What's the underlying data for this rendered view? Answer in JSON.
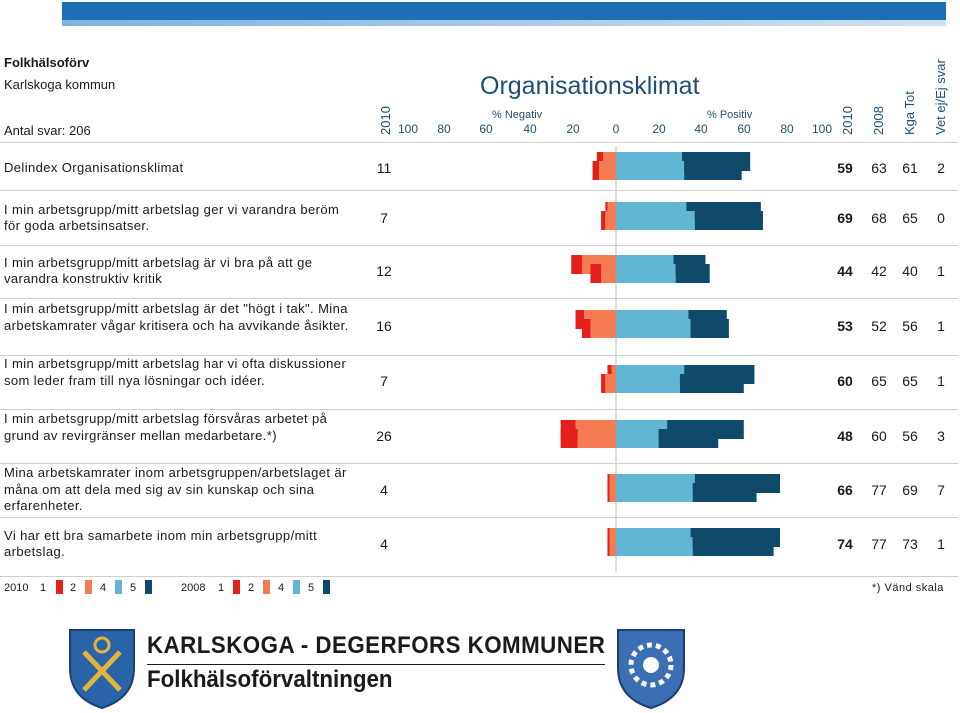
{
  "header": {
    "org": "Folkhälsoförv",
    "municipality": "Karlskoga kommun",
    "respondents": "Antal svar: 206",
    "title": "Organisationsklimat",
    "neg_label": "% Negativ",
    "pos_label": "% Positiv",
    "col_year_left": "2010",
    "col_year_a": "2010",
    "col_year_b": "2008",
    "col_kga": "Kga Tot",
    "col_vetej": "Vet ej/Ej svar"
  },
  "axis": {
    "ticks": [
      "100",
      "80",
      "60",
      "40",
      "20",
      "0",
      "20",
      "40",
      "60",
      "80",
      "100"
    ]
  },
  "chart_data": {
    "type": "bar",
    "title": "Organisationsklimat",
    "xlabel_left": "% Negativ",
    "xlabel_right": "% Positiv",
    "xlim": [
      -100,
      100
    ],
    "series_legend": {
      "2010": [
        "1",
        "2",
        "4",
        "5"
      ],
      "2008": [
        "1",
        "2",
        "4",
        "5"
      ]
    },
    "rows": [
      {
        "label": "Delindex  Organisationsklimat",
        "neg2010": 11,
        "pos2010": 59,
        "pos2008": 63,
        "kga": 61,
        "vetej": 2,
        "b2010": {
          "v1": -3,
          "v2": -8,
          "v4": 32,
          "v5": 27
        },
        "b2008": {
          "v1": -3,
          "v2": -6,
          "v4": 31,
          "v5": 32
        }
      },
      {
        "label": "I min arbetsgrupp/mitt arbetslag ger vi varandra beröm för goda arbetsinsatser.",
        "neg2010": 7,
        "pos2010": 69,
        "pos2008": 68,
        "kga": 65,
        "vetej": 0,
        "b2010": {
          "v1": -2,
          "v2": -5,
          "v4": 37,
          "v5": 32
        },
        "b2008": {
          "v1": -1,
          "v2": -4,
          "v4": 33,
          "v5": 35
        }
      },
      {
        "label": "I min arbetsgrupp/mitt arbetslag är vi bra på att ge varandra konstruktiv kritik",
        "neg2010": 12,
        "pos2010": 44,
        "pos2008": 42,
        "kga": 40,
        "vetej": 1,
        "b2010": {
          "v1": -5,
          "v2": -7,
          "v4": 28,
          "v5": 16
        },
        "b2008": {
          "v1": -5,
          "v2": -16,
          "v4": 27,
          "v5": 15
        }
      },
      {
        "label": "I min arbetsgrupp/mitt arbetslag är det \"högt i tak\". Mina arbetskamrater vågar kritisera och ha avvikande åsikter.",
        "neg2010": 16,
        "pos2010": 53,
        "pos2008": 52,
        "kga": 56,
        "vetej": 1,
        "b2010": {
          "v1": -4,
          "v2": -12,
          "v4": 35,
          "v5": 18
        },
        "b2008": {
          "v1": -4,
          "v2": -15,
          "v4": 34,
          "v5": 18
        }
      },
      {
        "label": "I min arbetsgrupp/mitt arbetslag har vi ofta diskussioner som leder fram till nya lösningar och idéer.",
        "neg2010": 7,
        "pos2010": 60,
        "pos2008": 65,
        "kga": 65,
        "vetej": 1,
        "b2010": {
          "v1": -2,
          "v2": -5,
          "v4": 30,
          "v5": 30
        },
        "b2008": {
          "v1": -2,
          "v2": -2,
          "v4": 32,
          "v5": 33
        }
      },
      {
        "label": "I min arbetsgrupp/mitt arbetslag försvåras arbetet på grund av revirgränser mellan medarbetare.*)",
        "neg2010": 26,
        "pos2010": 48,
        "pos2008": 60,
        "kga": 56,
        "vetej": 3,
        "b2010": {
          "v1": -8,
          "v2": -18,
          "v4": 20,
          "v5": 28
        },
        "b2008": {
          "v1": -7,
          "v2": -19,
          "v4": 24,
          "v5": 36
        }
      },
      {
        "label": "Mina arbetskamrater inom arbetsgruppen/arbetslaget är måna om att dela med sig av sin kunskap och sina erfarenheter.",
        "neg2010": 4,
        "pos2010": 66,
        "pos2008": 77,
        "kga": 69,
        "vetej": 7,
        "b2010": {
          "v1": -1,
          "v2": -3,
          "v4": 36,
          "v5": 30
        },
        "b2008": {
          "v1": -1,
          "v2": -3,
          "v4": 37,
          "v5": 40
        }
      },
      {
        "label": "Vi har ett bra samarbete inom min arbetsgrupp/mitt arbetslag.",
        "neg2010": 4,
        "pos2010": 74,
        "pos2008": 77,
        "kga": 73,
        "vetej": 1,
        "b2010": {
          "v1": -1,
          "v2": -3,
          "v4": 36,
          "v5": 38
        },
        "b2008": {
          "v1": -1,
          "v2": -3,
          "v4": 35,
          "v5": 42
        }
      }
    ]
  },
  "legend": {
    "y2010": "2010",
    "y2008": "2008",
    "k1": "1",
    "k2": "2",
    "k4": "4",
    "k5": "5",
    "note": "*) Vänd skala"
  },
  "colors": {
    "c1": "#e3201b",
    "c2": "#f47b52",
    "c4": "#62b6d5",
    "c5": "#0f4a6b",
    "title": "#1f4f72"
  },
  "footer": {
    "line1": "KARLSKOGA - DEGERFORS KOMMUNER",
    "line2": "Folkhälsoförvaltningen"
  }
}
